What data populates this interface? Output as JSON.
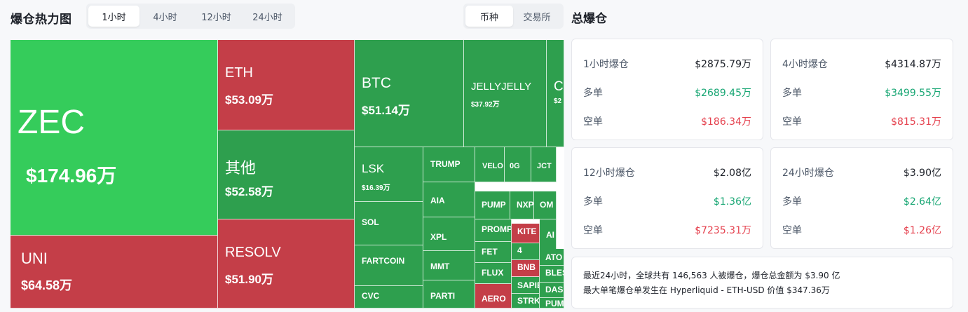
{
  "heatmap": {
    "title": "爆仓热力图",
    "time_tabs": [
      "1小时",
      "4小时",
      "12小时",
      "24小时"
    ],
    "active_time_tab": 0,
    "view_tabs": [
      "币种",
      "交易所"
    ],
    "active_view_tab": 0,
    "cells": [
      {
        "symbol": "ZEC",
        "amount": "$174.96万",
        "side": "long"
      },
      {
        "symbol": "UNI",
        "amount": "$64.58万",
        "side": "short"
      },
      {
        "symbol": "ETH",
        "amount": "$53.09万",
        "side": "short"
      },
      {
        "symbol": "其他",
        "amount": "$52.58万",
        "side": "long"
      },
      {
        "symbol": "RESOLV",
        "amount": "$51.90万",
        "side": "short"
      },
      {
        "symbol": "BTC",
        "amount": "$51.14万",
        "side": "long"
      },
      {
        "symbol": "JELLYJELLY",
        "amount": "$37.92万",
        "side": "long"
      },
      {
        "symbol": "C",
        "amount": "$2",
        "side": "long"
      },
      {
        "symbol": "LSK",
        "amount": "$16.39万",
        "side": "long"
      },
      {
        "symbol": "TRUMP",
        "amount": "",
        "side": "long"
      },
      {
        "symbol": "VELO",
        "amount": "",
        "side": "long"
      },
      {
        "symbol": "0G",
        "amount": "",
        "side": "long"
      },
      {
        "symbol": "JCT",
        "amount": "",
        "side": "long"
      },
      {
        "symbol": "AIA",
        "amount": "",
        "side": "long"
      },
      {
        "symbol": "PUMP",
        "amount": "",
        "side": "long"
      },
      {
        "symbol": "NXP",
        "amount": "",
        "side": "long"
      },
      {
        "symbol": "OM",
        "amount": "",
        "side": "long"
      },
      {
        "symbol": "SOL",
        "amount": "",
        "side": "long"
      },
      {
        "symbol": "XPL",
        "amount": "",
        "side": "long"
      },
      {
        "symbol": "PROMP",
        "amount": "",
        "side": "long"
      },
      {
        "symbol": "KITE",
        "amount": "",
        "side": "short"
      },
      {
        "symbol": "AI",
        "amount": "",
        "side": "long"
      },
      {
        "symbol": "FARTCOIN",
        "amount": "",
        "side": "long"
      },
      {
        "symbol": "MMT",
        "amount": "",
        "side": "long"
      },
      {
        "symbol": "FET",
        "amount": "",
        "side": "long"
      },
      {
        "symbol": "4",
        "amount": "",
        "side": "long"
      },
      {
        "symbol": "ATO",
        "amount": "",
        "side": "long"
      },
      {
        "symbol": "FLUX",
        "amount": "",
        "side": "long"
      },
      {
        "symbol": "BNB",
        "amount": "",
        "side": "short"
      },
      {
        "symbol": "BLES",
        "amount": "",
        "side": "long"
      },
      {
        "symbol": "CVC",
        "amount": "",
        "side": "long"
      },
      {
        "symbol": "PARTI",
        "amount": "",
        "side": "long"
      },
      {
        "symbol": "SAPIE",
        "amount": "",
        "side": "long"
      },
      {
        "symbol": "DAS",
        "amount": "",
        "side": "long"
      },
      {
        "symbol": "AERO",
        "amount": "",
        "side": "short"
      },
      {
        "symbol": "STRK",
        "amount": "",
        "side": "long"
      },
      {
        "symbol": "PUM",
        "amount": "",
        "side": "long"
      }
    ]
  },
  "total": {
    "title": "总爆仓",
    "long_label": "多单",
    "short_label": "空单",
    "cards": [
      {
        "label": "1小时爆仓",
        "total": "$2875.79万",
        "long": "$2689.45万",
        "short": "$186.34万"
      },
      {
        "label": "4小时爆仓",
        "total": "$4314.87万",
        "long": "$3499.55万",
        "short": "$815.31万"
      },
      {
        "label": "12小时爆仓",
        "total": "$2.08亿",
        "long": "$1.36亿",
        "short": "$7235.31万"
      },
      {
        "label": "24小时爆仓",
        "total": "$3.90亿",
        "long": "$2.64亿",
        "short": "$1.26亿"
      }
    ],
    "summary_line1": "最近24小时，全球共有 146,563 人被爆仓，爆仓总金额为 $3.90 亿",
    "summary_line2": "最大单笔爆仓单发生在 Hyperliquid - ETH-USD 价值 $347.36万"
  },
  "colors": {
    "long": "#2e9f4e",
    "long_light": "#35cc5b",
    "short": "#c43e48",
    "up_text": "#17a673",
    "down_text": "#e5404d"
  }
}
